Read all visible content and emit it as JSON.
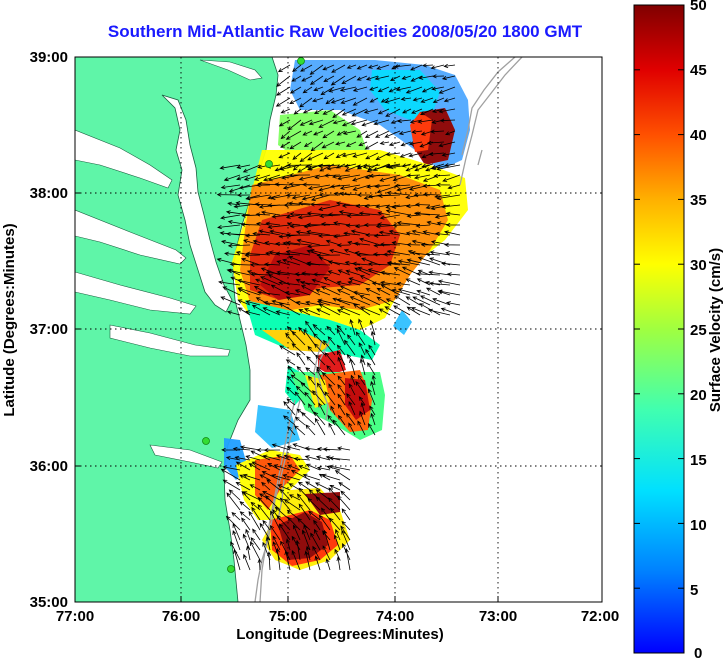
{
  "title": "Southern Mid-Atlantic Raw Velocities 2008/05/20 1800 GMT",
  "axes": {
    "xlabel": "Longitude (Degrees:Minutes)",
    "ylabel": "Latitude (Degrees:Minutes)",
    "x_ticks": [
      "77:00",
      "76:00",
      "75:00",
      "74:00",
      "73:00",
      "72:00"
    ],
    "y_ticks": [
      "39:00",
      "38:00",
      "37:00",
      "36:00",
      "35:00"
    ],
    "x_range_deg": [
      -77,
      -72
    ],
    "y_range_deg": [
      35,
      39
    ]
  },
  "colorbar": {
    "label": "Surface Velocity (cm/s)",
    "ticks": [
      "50",
      "45",
      "40",
      "35",
      "30",
      "25",
      "20",
      "15",
      "10",
      "5",
      "0"
    ],
    "range": [
      0,
      50
    ],
    "colormap": "jet"
  },
  "colors": {
    "title": "#1a1aff",
    "land": "#5ff5a8",
    "bathymetry": "#a0a0a0",
    "station": "#33dd33"
  }
}
